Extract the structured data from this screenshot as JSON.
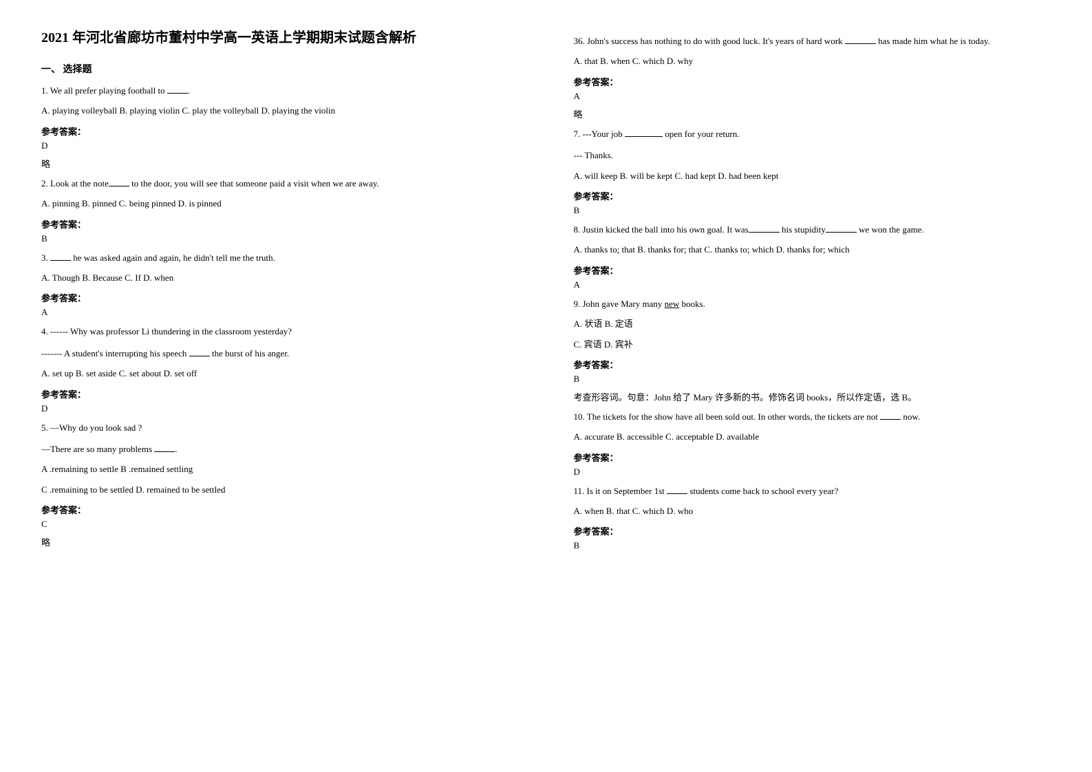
{
  "title": "2021 年河北省廊坊市董村中学高一英语上学期期末试题含解析",
  "section1": "一、 选择题",
  "q1": {
    "stem_a": "1. We all prefer playing football to ",
    "stem_b": ".",
    "opts": "   A. playing volleyball    B. playing violin  C. play the volleyball    D. playing the violin",
    "ans_label": "参考答案：",
    "ans": "D",
    "note": "略"
  },
  "q2": {
    "stem_a": "2. Look at the note",
    "stem_b": " to the door, you will see that someone paid a visit when we are away.",
    "opts": "A. pinning    B. pinned     C. being pinned    D. is pinned",
    "ans_label": "参考答案：",
    "ans": "B"
  },
  "q3": {
    "stem_a": "3. ",
    "stem_b": " he was asked again and again, he didn't tell me the truth.",
    "opts": "A. Though    B. Because    C. If      D. when",
    "ans_label": "参考答案：",
    "ans": "A"
  },
  "q4": {
    "stem1": "4. ------ Why was professor Li thundering in the classroom yesterday?",
    "stem2_a": "  ------- A student's interrupting his speech ",
    "stem2_b": " the burst of his anger.",
    "opts": "      A. set up       B. set aside      C. set about     D. set off",
    "ans_label": "参考答案：",
    "ans": "D"
  },
  "q5": {
    "stem1": "5. —Why do you look sad ?",
    "stem2_a": "   —There are so many problems ",
    "stem2_b": ".",
    "opts1": "A .remaining to settle        B .remained settling",
    "opts2": "C .remaining to be settled       D. remained to be settled",
    "ans_label": "参考答案：",
    "ans": "C",
    "note": "略"
  },
  "q6": {
    "stem_a": "36. John's success has nothing to do with good luck. It's years of hard work ",
    "stem_b": " has made him what he is today.",
    "opts": "    A. that                     B. when                   C. which                   D. why",
    "ans_label": "参考答案：",
    "ans": "A",
    "note": "略"
  },
  "q7": {
    "stem1_a": "7.  ---Your job ",
    "stem1_b": " open for your return.",
    "stem2": "    --- Thanks.",
    "opts": "  A. will keep      B. will be kept      C. had kept        D. had been kept",
    "ans_label": "参考答案：",
    "ans": "B"
  },
  "q8": {
    "stem_a": "8. Justin kicked the ball into his own goal. It was",
    "stem_b": " his stupidity",
    "stem_c": " we won the game.",
    "opts": "    A. thanks to; that      B. thanks for; that    C. thanks to; which    D. thanks for; which",
    "ans_label": "参考答案：",
    "ans": "A"
  },
  "q9": {
    "stem_a": "9. John gave Mary many ",
    "stem_u": "new",
    "stem_b": " books.",
    "opts1": "A. 状语          B. 定语",
    "opts2": "C. 宾语          D. 宾补",
    "ans_label": "参考答案：",
    "ans": "B",
    "note": "考查形容词。句意：John 给了 Mary 许多新的书。修饰名词 books，所以作定语，选 B。"
  },
  "q10": {
    "stem_a": "10. The tickets for the show have all been sold out. In other words, the tickets are not ",
    "stem_b": " now.",
    "opts": "A. accurate    B. accessible    C. acceptable    D. available",
    "ans_label": "参考答案：",
    "ans": "D"
  },
  "q11": {
    "stem_a": "11. Is it on September 1st ",
    "stem_b": " students come back to school every year?",
    "opts": "A. when      B. that      C. which      D. who",
    "ans_label": "参考答案：",
    "ans": "B"
  }
}
